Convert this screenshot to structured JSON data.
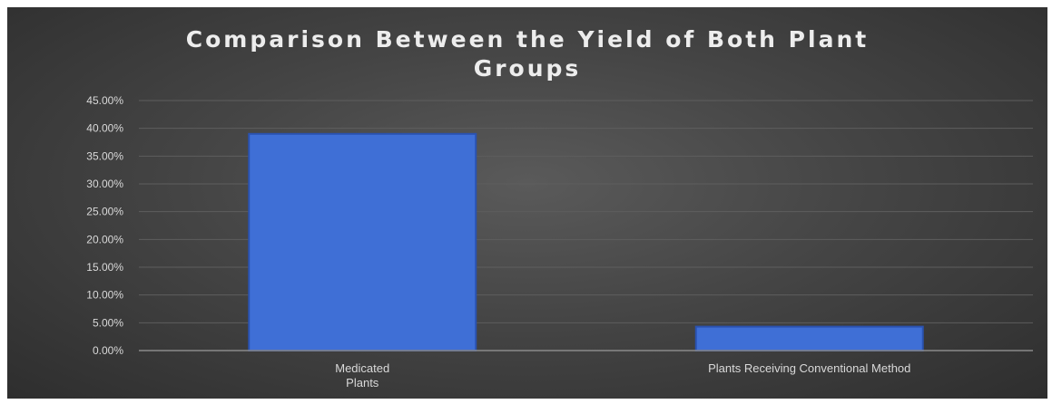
{
  "chart_data": {
    "type": "bar",
    "title_lines": [
      "Comparison Between the Yield of Both Plant",
      "Groups"
    ],
    "categories": [
      [
        "Medicated",
        "Plants"
      ],
      [
        "Plants  Receiving Conventional Method"
      ]
    ],
    "values": [
      0.39,
      0.043
    ],
    "ylim": [
      0,
      0.45
    ],
    "yticks": [
      "0.00%",
      "5.00%",
      "10.00%",
      "15.00%",
      "20.00%",
      "25.00%",
      "30.00%",
      "35.00%",
      "40.00%",
      "45.00%"
    ],
    "grid": true,
    "legend": "none",
    "xlabel": "",
    "ylabel": ""
  },
  "colors": {
    "bar_fill": "#3f6fd6",
    "bar_edge": "#2a52b0",
    "grid": "#5e5e5e",
    "axis": "#8a8a8a",
    "text": "#d9d9d9"
  }
}
